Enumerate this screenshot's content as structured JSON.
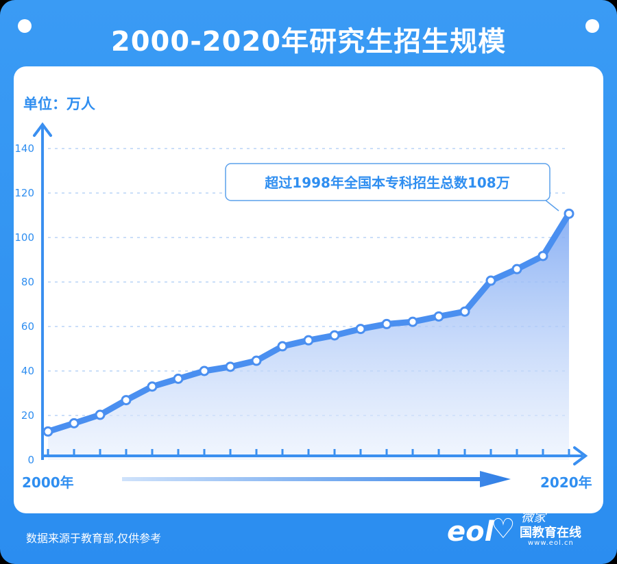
{
  "title": "2000-2020年研究生招生规模",
  "unit_label": "单位：万人",
  "footer": "数据来源于教育部,仅供参考",
  "brand": {
    "name": "国教育在线",
    "url": "www.eol.cn",
    "logo_letters": "eol",
    "script_text": "微家"
  },
  "colors": {
    "frame": "#2f8ef0",
    "line": "#4a90ec",
    "area_top": "#8fb6f5",
    "panel": "#ffffff"
  },
  "chart_data": {
    "type": "area",
    "title": "2000-2020年研究生招生规模",
    "ylabel": "单位：万人",
    "x_start_label": "2000年",
    "x_end_label": "2020年",
    "x": [
      2000,
      2001,
      2002,
      2003,
      2004,
      2005,
      2006,
      2007,
      2008,
      2009,
      2010,
      2011,
      2012,
      2013,
      2014,
      2015,
      2016,
      2017,
      2018,
      2019,
      2020
    ],
    "values": [
      12.8,
      16.5,
      20.3,
      26.9,
      33.0,
      36.5,
      40.0,
      41.9,
      44.6,
      51.1,
      53.8,
      56.0,
      58.9,
      61.1,
      62.1,
      64.5,
      66.7,
      80.6,
      85.8,
      91.7,
      110.7
    ],
    "ylim": [
      0,
      140
    ],
    "yticks": [
      0,
      20,
      40,
      60,
      80,
      100,
      120,
      140
    ],
    "grid": true,
    "annotation": "超过1998年全国本专科招生总数108万"
  }
}
